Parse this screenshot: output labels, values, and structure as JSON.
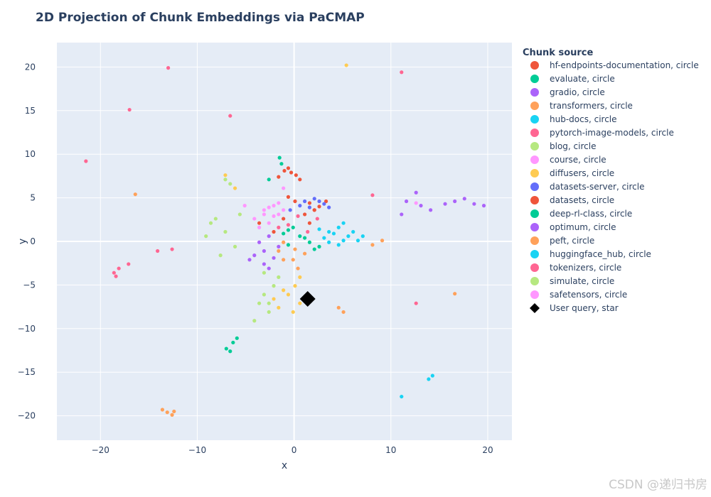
{
  "chart_data": {
    "type": "scatter",
    "title": "2D Projection of Chunk Embeddings via PaCMAP",
    "xlabel": "x",
    "ylabel": "y",
    "xlim": [
      -24.5,
      22.5
    ],
    "ylim": [
      -22.8,
      22.8
    ],
    "x_ticks": [
      -20,
      -10,
      0,
      10,
      20
    ],
    "y_ticks": [
      -20,
      -15,
      -10,
      -5,
      0,
      5,
      10,
      15,
      20
    ],
    "grid": true,
    "plot_background": "#e5ecf6",
    "legend_title": "Chunk source",
    "legend_position": "right",
    "series": [
      {
        "name": "hf-endpoints-documentation, circle",
        "color": "#EF553B",
        "symbol": "circle",
        "points": [
          [
            -0.3,
            7.9
          ],
          [
            -1.0,
            8.1
          ],
          [
            0.2,
            7.6
          ],
          [
            -0.6,
            8.4
          ],
          [
            1.6,
            4.4
          ],
          [
            2.6,
            4.0
          ],
          [
            3.3,
            4.6
          ],
          [
            -1.6,
            7.4
          ],
          [
            0.6,
            7.1
          ],
          [
            2.1,
            3.6
          ]
        ]
      },
      {
        "name": "evaluate, circle",
        "color": "#00CC96",
        "symbol": "circle",
        "points": [
          [
            -1.5,
            9.6
          ],
          [
            -1.3,
            8.9
          ],
          [
            -2.6,
            7.1
          ],
          [
            -7.0,
            -12.3
          ],
          [
            -6.3,
            -11.6
          ],
          [
            -5.9,
            -11.1
          ],
          [
            1.1,
            0.4
          ],
          [
            2.6,
            -0.6
          ],
          [
            -0.6,
            1.3
          ],
          [
            -6.6,
            -12.6
          ]
        ]
      },
      {
        "name": "gradio, circle",
        "color": "#AB63FA",
        "symbol": "circle",
        "points": [
          [
            11.6,
            4.6
          ],
          [
            12.6,
            5.6
          ],
          [
            13.1,
            4.1
          ],
          [
            14.1,
            3.6
          ],
          [
            15.6,
            4.3
          ],
          [
            16.6,
            4.6
          ],
          [
            17.6,
            4.9
          ],
          [
            18.6,
            4.3
          ],
          [
            19.6,
            4.1
          ],
          [
            11.1,
            3.1
          ],
          [
            -2.6,
            0.6
          ],
          [
            -3.1,
            -1.1
          ],
          [
            -1.6,
            -0.6
          ]
        ]
      },
      {
        "name": "transformers, circle",
        "color": "#FFA15A",
        "symbol": "circle",
        "points": [
          [
            -13.1,
            -19.6
          ],
          [
            -12.6,
            -19.9
          ],
          [
            -13.6,
            -19.3
          ],
          [
            -12.4,
            -19.5
          ],
          [
            16.6,
            -6.0
          ],
          [
            -16.4,
            5.4
          ],
          [
            4.6,
            -7.6
          ],
          [
            5.1,
            -8.1
          ],
          [
            -1.1,
            -2.1
          ],
          [
            0.4,
            -3.1
          ]
        ]
      },
      {
        "name": "hub-docs, circle",
        "color": "#19D3F3",
        "symbol": "circle",
        "points": [
          [
            13.9,
            -15.8
          ],
          [
            14.3,
            -15.4
          ],
          [
            3.6,
            1.1
          ],
          [
            4.6,
            1.6
          ],
          [
            5.6,
            0.6
          ],
          [
            2.6,
            1.4
          ],
          [
            6.6,
            0.1
          ],
          [
            11.1,
            -17.8
          ],
          [
            3.1,
            0.4
          ],
          [
            5.1,
            2.1
          ]
        ]
      },
      {
        "name": "pytorch-image-models, circle",
        "color": "#FF6692",
        "symbol": "circle",
        "points": [
          [
            -13.0,
            19.9
          ],
          [
            -17.0,
            15.1
          ],
          [
            -21.5,
            9.2
          ],
          [
            -6.6,
            14.4
          ],
          [
            11.1,
            19.4
          ],
          [
            -18.6,
            -3.6
          ],
          [
            -18.1,
            -3.1
          ],
          [
            -18.4,
            -4.0
          ],
          [
            -14.1,
            -1.1
          ],
          [
            -12.6,
            -0.9
          ],
          [
            8.1,
            5.3
          ],
          [
            12.6,
            -7.1
          ],
          [
            -17.1,
            -2.6
          ]
        ]
      },
      {
        "name": "blog, circle",
        "color": "#B6E880",
        "symbol": "circle",
        "points": [
          [
            -8.1,
            2.6
          ],
          [
            -7.1,
            1.1
          ],
          [
            -9.1,
            0.6
          ],
          [
            -6.1,
            -0.6
          ],
          [
            -7.6,
            -1.6
          ],
          [
            -5.6,
            3.1
          ],
          [
            -6.6,
            6.6
          ],
          [
            -7.1,
            7.1
          ],
          [
            -3.1,
            -3.6
          ],
          [
            -2.6,
            -7.1
          ],
          [
            -4.1,
            -9.1
          ],
          [
            -8.6,
            2.1
          ]
        ]
      },
      {
        "name": "course, circle",
        "color": "#FF97FF",
        "symbol": "circle",
        "points": [
          [
            -3.1,
            3.6
          ],
          [
            -2.1,
            4.1
          ],
          [
            -4.1,
            2.6
          ],
          [
            -1.1,
            6.1
          ],
          [
            -2.6,
            2.1
          ],
          [
            -3.6,
            1.6
          ],
          [
            -5.1,
            4.1
          ],
          [
            12.6,
            4.4
          ],
          [
            -1.6,
            3.1
          ]
        ]
      },
      {
        "name": "diffusers, circle",
        "color": "#FECB52",
        "symbol": "circle",
        "points": [
          [
            0.1,
            -5.1
          ],
          [
            -0.6,
            -6.1
          ],
          [
            0.6,
            -7.1
          ],
          [
            -1.1,
            -5.6
          ],
          [
            1.1,
            -6.6
          ],
          [
            -0.1,
            -8.1
          ],
          [
            -2.1,
            -6.6
          ],
          [
            -7.1,
            7.6
          ],
          [
            -6.1,
            6.1
          ],
          [
            5.4,
            20.2
          ],
          [
            0.6,
            -4.1
          ],
          [
            -1.6,
            -7.6
          ]
        ]
      },
      {
        "name": "datasets-server, circle",
        "color": "#636EFA",
        "symbol": "circle",
        "points": [
          [
            1.1,
            4.6
          ],
          [
            2.1,
            4.9
          ],
          [
            3.1,
            4.3
          ],
          [
            0.6,
            4.1
          ],
          [
            1.6,
            3.9
          ],
          [
            2.6,
            4.6
          ],
          [
            -0.4,
            3.6
          ],
          [
            3.6,
            3.9
          ]
        ]
      },
      {
        "name": "datasets, circle",
        "color": "#EF553B",
        "symbol": "circle",
        "points": [
          [
            1.1,
            3.1
          ],
          [
            2.1,
            3.6
          ],
          [
            -0.6,
            5.1
          ],
          [
            0.1,
            4.6
          ],
          [
            -3.6,
            2.1
          ],
          [
            -1.1,
            2.6
          ],
          [
            1.6,
            2.1
          ],
          [
            -2.1,
            1.1
          ]
        ]
      },
      {
        "name": "deep-rl-class, circle",
        "color": "#00CC96",
        "symbol": "circle",
        "points": [
          [
            -0.1,
            1.6
          ],
          [
            0.6,
            0.6
          ],
          [
            1.6,
            -0.1
          ],
          [
            -1.1,
            0.9
          ],
          [
            2.1,
            -0.9
          ],
          [
            -0.6,
            -0.4
          ]
        ]
      },
      {
        "name": "optimum, circle",
        "color": "#AB63FA",
        "symbol": "circle",
        "points": [
          [
            -4.1,
            -1.6
          ],
          [
            -3.1,
            -2.6
          ],
          [
            -2.1,
            -1.9
          ],
          [
            -3.6,
            -0.1
          ],
          [
            -4.6,
            -2.1
          ],
          [
            -2.6,
            -3.1
          ]
        ]
      },
      {
        "name": "peft, circle",
        "color": "#FFA15A",
        "symbol": "circle",
        "points": [
          [
            -1.1,
            -0.1
          ],
          [
            0.1,
            -0.9
          ],
          [
            -0.1,
            -2.1
          ],
          [
            1.1,
            -1.4
          ],
          [
            -1.6,
            -1.1
          ],
          [
            8.1,
            -0.4
          ],
          [
            9.1,
            0.1
          ]
        ]
      },
      {
        "name": "huggingface_hub, circle",
        "color": "#19D3F3",
        "symbol": "circle",
        "points": [
          [
            4.1,
            0.9
          ],
          [
            5.1,
            0.1
          ],
          [
            6.1,
            1.1
          ],
          [
            3.6,
            -0.1
          ],
          [
            4.6,
            -0.4
          ],
          [
            7.1,
            0.6
          ]
        ]
      },
      {
        "name": "tokenizers, circle",
        "color": "#FF6692",
        "symbol": "circle",
        "points": [
          [
            -0.6,
            1.9
          ],
          [
            0.4,
            2.9
          ],
          [
            -1.6,
            1.6
          ],
          [
            1.4,
            1.1
          ],
          [
            2.4,
            2.6
          ]
        ]
      },
      {
        "name": "simulate, circle",
        "color": "#B6E880",
        "symbol": "circle",
        "points": [
          [
            -2.1,
            -5.1
          ],
          [
            -3.1,
            -6.1
          ],
          [
            -1.6,
            -4.1
          ],
          [
            -2.6,
            -8.1
          ],
          [
            -3.6,
            -7.1
          ]
        ]
      },
      {
        "name": "safetensors, circle",
        "color": "#FF97FF",
        "symbol": "circle",
        "points": [
          [
            -2.6,
            3.9
          ],
          [
            -1.6,
            4.4
          ],
          [
            -3.1,
            3.1
          ],
          [
            -2.1,
            2.9
          ],
          [
            -1.1,
            3.6
          ]
        ]
      },
      {
        "name": "User query, star",
        "color": "#000000",
        "symbol": "star",
        "points": [
          [
            1.4,
            -6.6
          ]
        ]
      }
    ]
  },
  "watermark": "CSDN @递归书房"
}
